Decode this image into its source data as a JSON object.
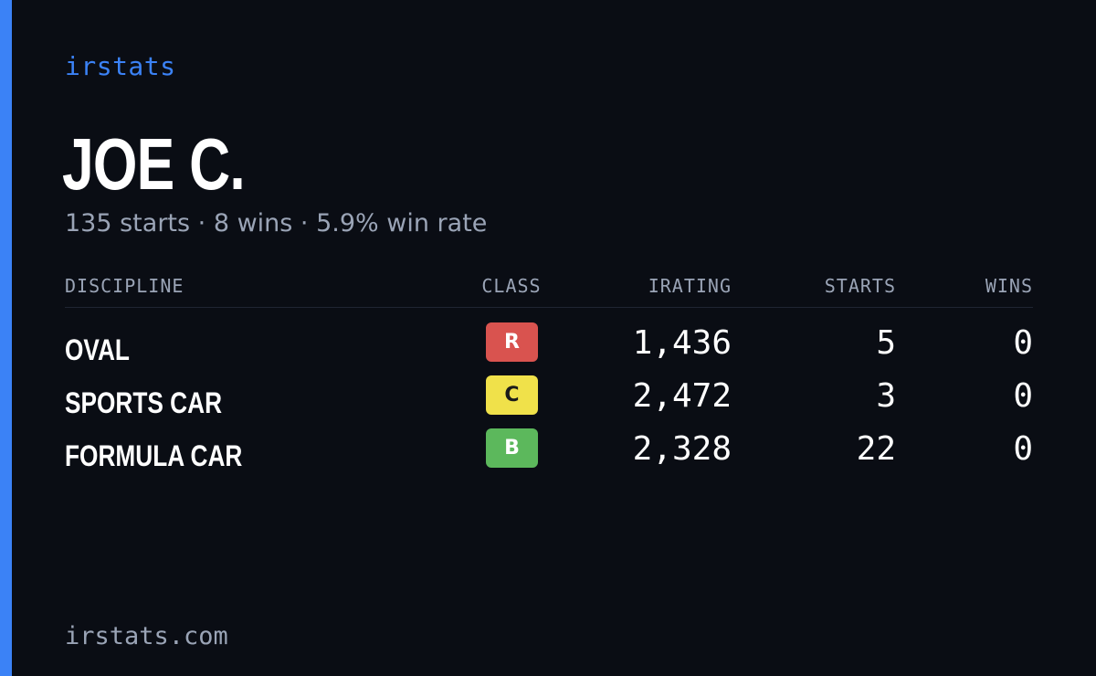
{
  "brand": "irstats",
  "player": {
    "name": "JOE C.",
    "summary": "135 starts · 8 wins · 5.9% win rate"
  },
  "table": {
    "headers": {
      "discipline": "DISCIPLINE",
      "class": "CLASS",
      "irating": "IRATING",
      "starts": "STARTS",
      "wins": "WINS"
    },
    "rows": [
      {
        "discipline": "OVAL",
        "class": "R",
        "class_bg": "#d9534f",
        "class_fg": "#ffffff",
        "irating": "1,436",
        "starts": "5",
        "wins": "0"
      },
      {
        "discipline": "SPORTS CAR",
        "class": "C",
        "class_bg": "#f0e14a",
        "class_fg": "#1a1a1a",
        "irating": "2,472",
        "starts": "3",
        "wins": "0"
      },
      {
        "discipline": "FORMULA CAR",
        "class": "B",
        "class_bg": "#5cb85c",
        "class_fg": "#ffffff",
        "irating": "2,328",
        "starts": "22",
        "wins": "0"
      }
    ]
  },
  "footer": "irstats.com",
  "colors": {
    "background": "#0a0d14",
    "accent": "#3b82f6",
    "muted_text": "#9aa4b6"
  }
}
